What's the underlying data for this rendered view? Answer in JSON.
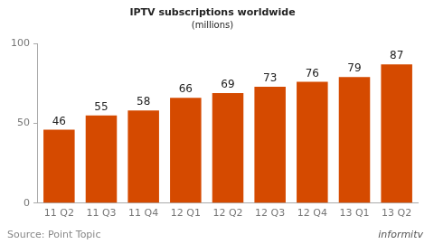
{
  "chart_data": {
    "type": "bar",
    "title": "IPTV subscriptions worldwide",
    "subtitle": "(millions)",
    "categories": [
      "11 Q2",
      "11 Q3",
      "11 Q4",
      "12 Q1",
      "12 Q2",
      "12 Q3",
      "12 Q4",
      "13 Q1",
      "13 Q2"
    ],
    "values": [
      46,
      55,
      58,
      66,
      69,
      73,
      76,
      79,
      87
    ],
    "color": "#d54a00",
    "ylim": [
      0,
      100
    ],
    "yticks": [
      0,
      50,
      100
    ],
    "grid": false,
    "data_labels": true,
    "annotations": [
      "Source: Point Topic",
      "informitv"
    ]
  }
}
